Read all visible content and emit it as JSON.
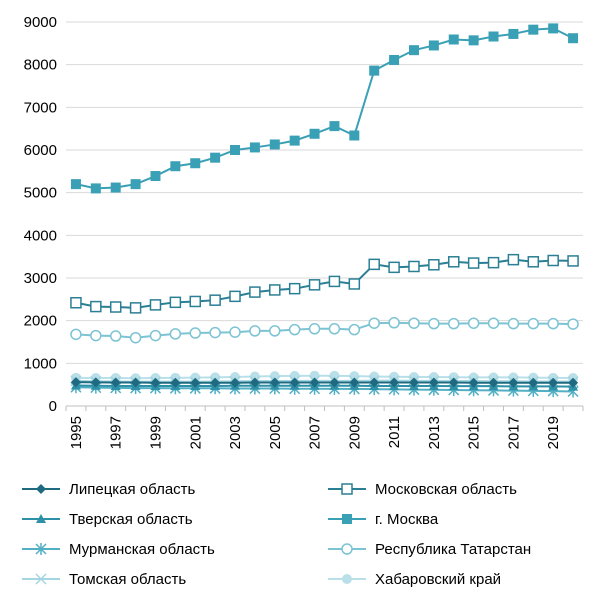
{
  "chart_data": {
    "type": "line",
    "title": "",
    "xlabel": "",
    "ylabel": "",
    "ylim": [
      0,
      9000
    ],
    "y_ticks": [
      0,
      1000,
      2000,
      3000,
      4000,
      5000,
      6000,
      7000,
      8000,
      9000
    ],
    "x": [
      1995,
      1996,
      1997,
      1998,
      1999,
      2000,
      2001,
      2002,
      2003,
      2004,
      2005,
      2006,
      2007,
      2008,
      2009,
      2010,
      2011,
      2012,
      2013,
      2014,
      2015,
      2016,
      2017,
      2018,
      2019,
      2020
    ],
    "x_tick_labels": [
      "1995",
      "1997",
      "1999",
      "2001",
      "2003",
      "2005",
      "2007",
      "2009",
      "2011",
      "2013",
      "2015",
      "2017",
      "2019"
    ],
    "grid": "horizontal",
    "legend_position": "bottom",
    "series": [
      {
        "name": "Липецкая область",
        "color": "#1f6a80",
        "marker": "diamond",
        "values": [
          560,
          555,
          550,
          550,
          545,
          545,
          545,
          545,
          545,
          550,
          550,
          550,
          550,
          550,
          550,
          550,
          550,
          550,
          550,
          550,
          545,
          545,
          545,
          545,
          545,
          545
        ]
      },
      {
        "name": "Московская область",
        "color": "#2b7f94",
        "marker": "square-open",
        "values": [
          2420,
          2330,
          2320,
          2300,
          2370,
          2430,
          2450,
          2480,
          2570,
          2670,
          2720,
          2750,
          2840,
          2920,
          2860,
          3320,
          3250,
          3270,
          3310,
          3380,
          3350,
          3360,
          3430,
          3380,
          3410,
          3400
        ]
      },
      {
        "name": "Тверская область",
        "color": "#2e90a6",
        "marker": "triangle",
        "values": [
          480,
          475,
          470,
          470,
          470,
          470,
          470,
          470,
          475,
          475,
          475,
          475,
          475,
          475,
          475,
          470,
          470,
          470,
          470,
          465,
          465,
          465,
          460,
          460,
          460,
          455
        ]
      },
      {
        "name": "г. Москва",
        "color": "#3aa0b5",
        "marker": "square",
        "values": [
          5200,
          5100,
          5120,
          5200,
          5390,
          5620,
          5690,
          5820,
          6000,
          6060,
          6130,
          6220,
          6380,
          6560,
          6340,
          7860,
          8110,
          8340,
          8450,
          8590,
          8570,
          8660,
          8720,
          8820,
          8850,
          8620
        ]
      },
      {
        "name": "Мурманская область",
        "color": "#52afc4",
        "marker": "asterisk",
        "values": [
          440,
          430,
          425,
          420,
          420,
          415,
          415,
          415,
          410,
          410,
          410,
          405,
          405,
          400,
          400,
          395,
          390,
          385,
          380,
          375,
          370,
          365,
          360,
          355,
          350,
          340
        ]
      },
      {
        "name": "Республика Татарстан",
        "color": "#7cc3d3",
        "marker": "circle-open",
        "values": [
          1680,
          1650,
          1640,
          1600,
          1650,
          1690,
          1710,
          1720,
          1730,
          1760,
          1760,
          1790,
          1810,
          1810,
          1790,
          1940,
          1950,
          1940,
          1930,
          1930,
          1940,
          1940,
          1930,
          1930,
          1930,
          1920
        ]
      },
      {
        "name": "Томская область",
        "color": "#a3d6e1",
        "marker": "x",
        "values": [
          590,
          580,
          575,
          570,
          570,
          570,
          570,
          575,
          580,
          585,
          585,
          590,
          590,
          590,
          590,
          595,
          595,
          590,
          590,
          585,
          585,
          580,
          580,
          575,
          575,
          570
        ]
      },
      {
        "name": "Хабаровский край",
        "color": "#b9dfe8",
        "marker": "circle",
        "values": [
          660,
          655,
          655,
          650,
          655,
          660,
          665,
          670,
          680,
          690,
          700,
          705,
          710,
          710,
          700,
          690,
          685,
          680,
          680,
          675,
          670,
          670,
          670,
          665,
          660,
          655
        ]
      }
    ]
  }
}
